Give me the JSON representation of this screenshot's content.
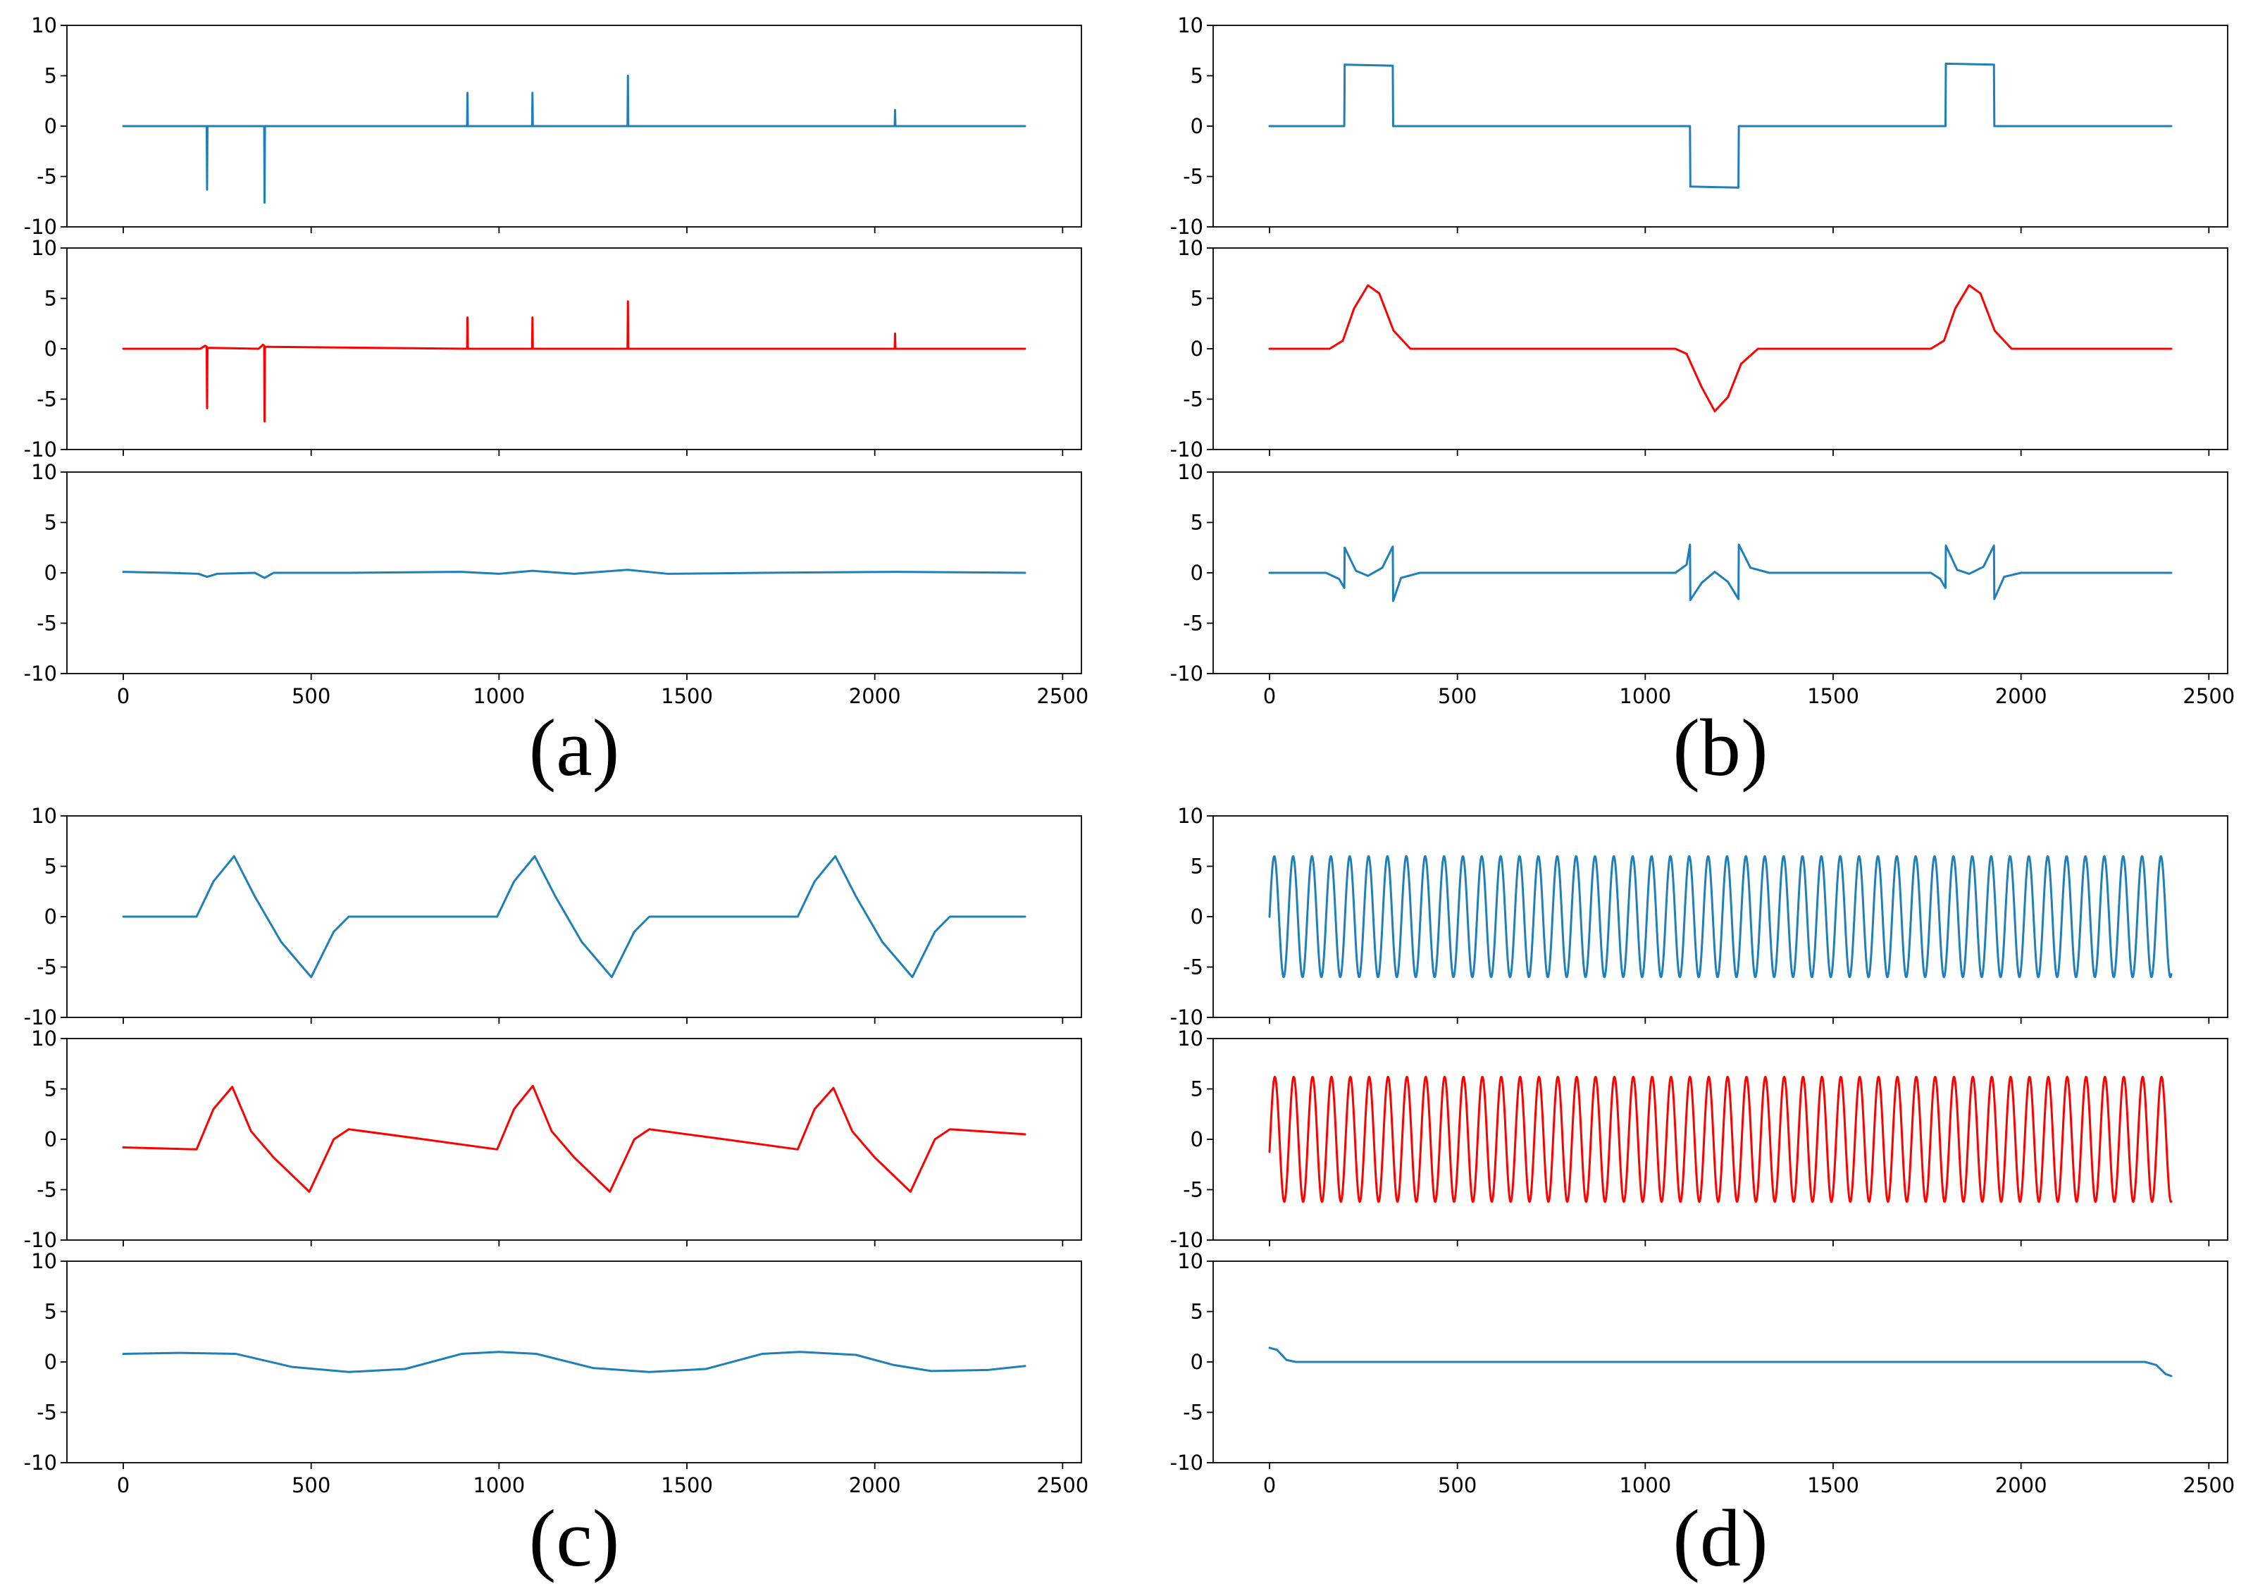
{
  "colors": {
    "blue": "#1f7fb8",
    "red": "#ff0000"
  },
  "chart_data": [
    {
      "panel": "(a)",
      "type": "line",
      "xticks": [
        0,
        500,
        1000,
        1500,
        2000,
        2500
      ],
      "xlim": [
        0,
        2400
      ],
      "yticks": [
        10,
        5,
        0,
        -5,
        -10
      ],
      "ylim": [
        -10,
        10
      ],
      "subplots": [
        {
          "color": "blue",
          "series": [
            {
              "x": 0,
              "y": 0
            },
            {
              "x": 222,
              "y": 0
            },
            {
              "x": 223,
              "y": -6.3
            },
            {
              "x": 224,
              "y": 0
            },
            {
              "x": 375,
              "y": 0
            },
            {
              "x": 376,
              "y": -7.6
            },
            {
              "x": 377,
              "y": 0
            },
            {
              "x": 915,
              "y": 0
            },
            {
              "x": 916,
              "y": 3.3
            },
            {
              "x": 917,
              "y": 0
            },
            {
              "x": 1088,
              "y": 0
            },
            {
              "x": 1089,
              "y": 3.3
            },
            {
              "x": 1090,
              "y": 0
            },
            {
              "x": 1342,
              "y": 0
            },
            {
              "x": 1343,
              "y": 5.0
            },
            {
              "x": 1344,
              "y": 0
            },
            {
              "x": 2053,
              "y": 0
            },
            {
              "x": 2054,
              "y": 1.6
            },
            {
              "x": 2055,
              "y": 0
            },
            {
              "x": 2400,
              "y": 0
            }
          ]
        },
        {
          "color": "red",
          "series": [
            {
              "x": 0,
              "y": 0
            },
            {
              "x": 205,
              "y": 0
            },
            {
              "x": 218,
              "y": 0.3
            },
            {
              "x": 222,
              "y": 0.2
            },
            {
              "x": 223,
              "y": -5.9
            },
            {
              "x": 224,
              "y": 0.1
            },
            {
              "x": 360,
              "y": 0
            },
            {
              "x": 372,
              "y": 0.4
            },
            {
              "x": 375,
              "y": 0.3
            },
            {
              "x": 376,
              "y": -7.2
            },
            {
              "x": 377,
              "y": 0.2
            },
            {
              "x": 915,
              "y": 0
            },
            {
              "x": 916,
              "y": 3.1
            },
            {
              "x": 917,
              "y": 0
            },
            {
              "x": 1088,
              "y": 0
            },
            {
              "x": 1089,
              "y": 3.1
            },
            {
              "x": 1090,
              "y": 0
            },
            {
              "x": 1342,
              "y": 0
            },
            {
              "x": 1343,
              "y": 4.7
            },
            {
              "x": 1344,
              "y": 0
            },
            {
              "x": 2053,
              "y": 0
            },
            {
              "x": 2054,
              "y": 1.5
            },
            {
              "x": 2055,
              "y": 0
            },
            {
              "x": 2400,
              "y": 0
            }
          ]
        },
        {
          "color": "blue",
          "series": [
            {
              "x": 0,
              "y": 0.1
            },
            {
              "x": 120,
              "y": 0
            },
            {
              "x": 200,
              "y": -0.1
            },
            {
              "x": 223,
              "y": -0.4
            },
            {
              "x": 250,
              "y": -0.1
            },
            {
              "x": 350,
              "y": 0
            },
            {
              "x": 376,
              "y": -0.5
            },
            {
              "x": 400,
              "y": 0
            },
            {
              "x": 600,
              "y": 0
            },
            {
              "x": 900,
              "y": 0.1
            },
            {
              "x": 1000,
              "y": -0.1
            },
            {
              "x": 1089,
              "y": 0.2
            },
            {
              "x": 1200,
              "y": -0.1
            },
            {
              "x": 1343,
              "y": 0.3
            },
            {
              "x": 1450,
              "y": -0.1
            },
            {
              "x": 1700,
              "y": 0
            },
            {
              "x": 2054,
              "y": 0.1
            },
            {
              "x": 2400,
              "y": 0
            }
          ]
        }
      ]
    },
    {
      "panel": "(b)",
      "type": "line",
      "xticks": [
        0,
        500,
        1000,
        1500,
        2000,
        2500
      ],
      "xlim": [
        0,
        2400
      ],
      "yticks": [
        10,
        5,
        0,
        -5,
        -10
      ],
      "ylim": [
        -10,
        10
      ],
      "subplots": [
        {
          "color": "blue",
          "series": [
            {
              "x": 0,
              "y": 0
            },
            {
              "x": 199,
              "y": 0
            },
            {
              "x": 200,
              "y": 6.1
            },
            {
              "x": 328,
              "y": 6.0
            },
            {
              "x": 329,
              "y": 0
            },
            {
              "x": 1119,
              "y": 0
            },
            {
              "x": 1120,
              "y": -6.0
            },
            {
              "x": 1248,
              "y": -6.1
            },
            {
              "x": 1249,
              "y": 0
            },
            {
              "x": 1799,
              "y": 0
            },
            {
              "x": 1800,
              "y": 6.2
            },
            {
              "x": 1928,
              "y": 6.1
            },
            {
              "x": 1929,
              "y": 0
            },
            {
              "x": 2400,
              "y": 0
            }
          ]
        },
        {
          "color": "red",
          "series": [
            {
              "x": 0,
              "y": 0
            },
            {
              "x": 160,
              "y": 0
            },
            {
              "x": 195,
              "y": 0.8
            },
            {
              "x": 225,
              "y": 4.0
            },
            {
              "x": 262,
              "y": 6.3
            },
            {
              "x": 292,
              "y": 5.5
            },
            {
              "x": 330,
              "y": 1.8
            },
            {
              "x": 375,
              "y": 0
            },
            {
              "x": 1080,
              "y": 0
            },
            {
              "x": 1110,
              "y": -0.5
            },
            {
              "x": 1150,
              "y": -3.8
            },
            {
              "x": 1185,
              "y": -6.2
            },
            {
              "x": 1220,
              "y": -4.8
            },
            {
              "x": 1255,
              "y": -1.5
            },
            {
              "x": 1300,
              "y": 0
            },
            {
              "x": 1760,
              "y": 0
            },
            {
              "x": 1795,
              "y": 0.8
            },
            {
              "x": 1825,
              "y": 4.0
            },
            {
              "x": 1862,
              "y": 6.3
            },
            {
              "x": 1892,
              "y": 5.5
            },
            {
              "x": 1930,
              "y": 1.8
            },
            {
              "x": 1975,
              "y": 0
            },
            {
              "x": 2400,
              "y": 0
            }
          ]
        },
        {
          "color": "blue",
          "series": [
            {
              "x": 0,
              "y": 0
            },
            {
              "x": 150,
              "y": 0
            },
            {
              "x": 185,
              "y": -0.6
            },
            {
              "x": 199,
              "y": -1.5
            },
            {
              "x": 200,
              "y": 2.5
            },
            {
              "x": 230,
              "y": 0.2
            },
            {
              "x": 262,
              "y": -0.3
            },
            {
              "x": 300,
              "y": 0.5
            },
            {
              "x": 328,
              "y": 2.6
            },
            {
              "x": 329,
              "y": -2.8
            },
            {
              "x": 350,
              "y": -0.5
            },
            {
              "x": 400,
              "y": 0
            },
            {
              "x": 1080,
              "y": 0
            },
            {
              "x": 1110,
              "y": 0.8
            },
            {
              "x": 1119,
              "y": 2.8
            },
            {
              "x": 1120,
              "y": -2.7
            },
            {
              "x": 1150,
              "y": -1.0
            },
            {
              "x": 1185,
              "y": 0.1
            },
            {
              "x": 1220,
              "y": -0.9
            },
            {
              "x": 1248,
              "y": -2.6
            },
            {
              "x": 1249,
              "y": 2.8
            },
            {
              "x": 1280,
              "y": 0.5
            },
            {
              "x": 1330,
              "y": 0
            },
            {
              "x": 1760,
              "y": 0
            },
            {
              "x": 1785,
              "y": -0.6
            },
            {
              "x": 1799,
              "y": -1.5
            },
            {
              "x": 1800,
              "y": 2.7
            },
            {
              "x": 1830,
              "y": 0.3
            },
            {
              "x": 1862,
              "y": -0.1
            },
            {
              "x": 1900,
              "y": 0.6
            },
            {
              "x": 1928,
              "y": 2.7
            },
            {
              "x": 1929,
              "y": -2.6
            },
            {
              "x": 1955,
              "y": -0.4
            },
            {
              "x": 2000,
              "y": 0
            },
            {
              "x": 2400,
              "y": 0
            }
          ]
        }
      ]
    },
    {
      "panel": "(c)",
      "type": "line",
      "xticks": [
        0,
        500,
        1000,
        1500,
        2000,
        2500
      ],
      "xlim": [
        0,
        2400
      ],
      "yticks": [
        10,
        5,
        0,
        -5,
        -10
      ],
      "ylim": [
        -10,
        10
      ],
      "subplots": [
        {
          "color": "blue",
          "series": [
            {
              "x": 0,
              "y": 0
            },
            {
              "x": 195,
              "y": 0
            },
            {
              "x": 240,
              "y": 3.5
            },
            {
              "x": 295,
              "y": 6.0
            },
            {
              "x": 350,
              "y": 2.0
            },
            {
              "x": 420,
              "y": -2.5
            },
            {
              "x": 500,
              "y": -6.0
            },
            {
              "x": 560,
              "y": -1.5
            },
            {
              "x": 600,
              "y": 0
            },
            {
              "x": 995,
              "y": 0
            },
            {
              "x": 1040,
              "y": 3.5
            },
            {
              "x": 1095,
              "y": 6.0
            },
            {
              "x": 1150,
              "y": 2.0
            },
            {
              "x": 1220,
              "y": -2.5
            },
            {
              "x": 1300,
              "y": -6.0
            },
            {
              "x": 1360,
              "y": -1.5
            },
            {
              "x": 1400,
              "y": 0
            },
            {
              "x": 1795,
              "y": 0
            },
            {
              "x": 1840,
              "y": 3.5
            },
            {
              "x": 1895,
              "y": 6.0
            },
            {
              "x": 1950,
              "y": 2.0
            },
            {
              "x": 2020,
              "y": -2.5
            },
            {
              "x": 2100,
              "y": -6.0
            },
            {
              "x": 2160,
              "y": -1.5
            },
            {
              "x": 2200,
              "y": 0
            },
            {
              "x": 2400,
              "y": 0
            }
          ]
        },
        {
          "color": "red",
          "series": [
            {
              "x": 0,
              "y": -0.8
            },
            {
              "x": 195,
              "y": -1.0
            },
            {
              "x": 240,
              "y": 3.0
            },
            {
              "x": 290,
              "y": 5.2
            },
            {
              "x": 340,
              "y": 0.8
            },
            {
              "x": 400,
              "y": -1.8
            },
            {
              "x": 495,
              "y": -5.2
            },
            {
              "x": 560,
              "y": 0
            },
            {
              "x": 600,
              "y": 1.0
            },
            {
              "x": 800,
              "y": 0
            },
            {
              "x": 995,
              "y": -1.0
            },
            {
              "x": 1040,
              "y": 3.0
            },
            {
              "x": 1090,
              "y": 5.3
            },
            {
              "x": 1140,
              "y": 0.8
            },
            {
              "x": 1200,
              "y": -1.8
            },
            {
              "x": 1295,
              "y": -5.2
            },
            {
              "x": 1360,
              "y": 0
            },
            {
              "x": 1400,
              "y": 1.0
            },
            {
              "x": 1600,
              "y": 0
            },
            {
              "x": 1795,
              "y": -1.0
            },
            {
              "x": 1840,
              "y": 3.0
            },
            {
              "x": 1890,
              "y": 5.1
            },
            {
              "x": 1940,
              "y": 0.8
            },
            {
              "x": 2000,
              "y": -1.8
            },
            {
              "x": 2095,
              "y": -5.2
            },
            {
              "x": 2160,
              "y": 0
            },
            {
              "x": 2200,
              "y": 1.0
            },
            {
              "x": 2400,
              "y": 0.5
            }
          ]
        },
        {
          "color": "blue",
          "series": [
            {
              "x": 0,
              "y": 0.8
            },
            {
              "x": 150,
              "y": 0.9
            },
            {
              "x": 300,
              "y": 0.8
            },
            {
              "x": 450,
              "y": -0.5
            },
            {
              "x": 600,
              "y": -1.0
            },
            {
              "x": 750,
              "y": -0.7
            },
            {
              "x": 900,
              "y": 0.8
            },
            {
              "x": 1000,
              "y": 1.0
            },
            {
              "x": 1100,
              "y": 0.8
            },
            {
              "x": 1250,
              "y": -0.6
            },
            {
              "x": 1400,
              "y": -1.0
            },
            {
              "x": 1550,
              "y": -0.7
            },
            {
              "x": 1700,
              "y": 0.8
            },
            {
              "x": 1800,
              "y": 1.0
            },
            {
              "x": 1950,
              "y": 0.7
            },
            {
              "x": 2050,
              "y": -0.3
            },
            {
              "x": 2150,
              "y": -0.9
            },
            {
              "x": 2300,
              "y": -0.8
            },
            {
              "x": 2400,
              "y": -0.4
            }
          ]
        }
      ]
    },
    {
      "panel": "(d)",
      "type": "line",
      "xticks": [
        0,
        500,
        1000,
        1500,
        2000,
        2500
      ],
      "xlim": [
        0,
        2400
      ],
      "yticks": [
        10,
        5,
        0,
        -5,
        -10
      ],
      "ylim": [
        -10,
        10
      ],
      "subplots": [
        {
          "color": "blue",
          "sine": {
            "amplitude": 6,
            "cycles": 47.8,
            "phase": 0,
            "offset": 0
          },
          "series": []
        },
        {
          "color": "red",
          "sine": {
            "amplitude": 6.2,
            "cycles": 47.8,
            "phase": -0.2,
            "offset": 0
          },
          "series": []
        },
        {
          "color": "blue",
          "series": [
            {
              "x": 0,
              "y": 1.4
            },
            {
              "x": 20,
              "y": 1.2
            },
            {
              "x": 45,
              "y": 0.2
            },
            {
              "x": 70,
              "y": 0
            },
            {
              "x": 2330,
              "y": 0
            },
            {
              "x": 2360,
              "y": -0.3
            },
            {
              "x": 2385,
              "y": -1.2
            },
            {
              "x": 2400,
              "y": -1.4
            }
          ]
        }
      ]
    }
  ]
}
